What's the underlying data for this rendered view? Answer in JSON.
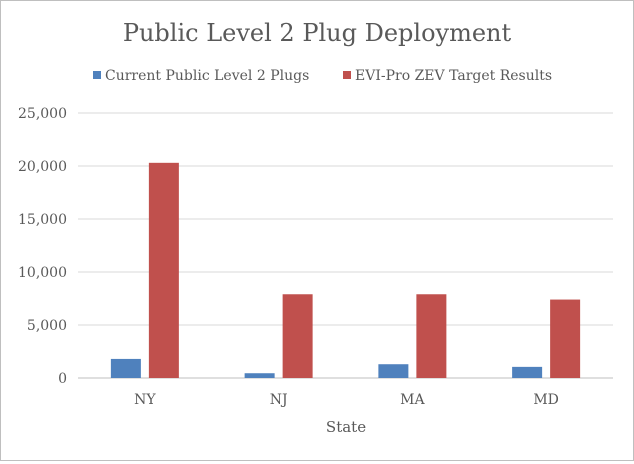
{
  "chart_data": {
    "type": "bar",
    "title": "Public Level 2 Plug Deployment",
    "xlabel": "State",
    "ylabel": "",
    "categories": [
      "NY",
      "NJ",
      "MA",
      "MD"
    ],
    "ylim": [
      0,
      25000
    ],
    "yticks": [
      0,
      5000,
      10000,
      15000,
      20000,
      25000
    ],
    "ytick_labels": [
      "0",
      "5,000",
      "10,000",
      "15,000",
      "20,000",
      "25,000"
    ],
    "grid": true,
    "legend_position": "top",
    "series": [
      {
        "name": "Current Public Level 2 Plugs",
        "color": "#4f81bd",
        "values": [
          1800,
          450,
          1300,
          1050
        ]
      },
      {
        "name": "EVI-Pro ZEV Target Results",
        "color": "#c0504d",
        "values": [
          20300,
          7900,
          7900,
          7400
        ]
      }
    ]
  }
}
